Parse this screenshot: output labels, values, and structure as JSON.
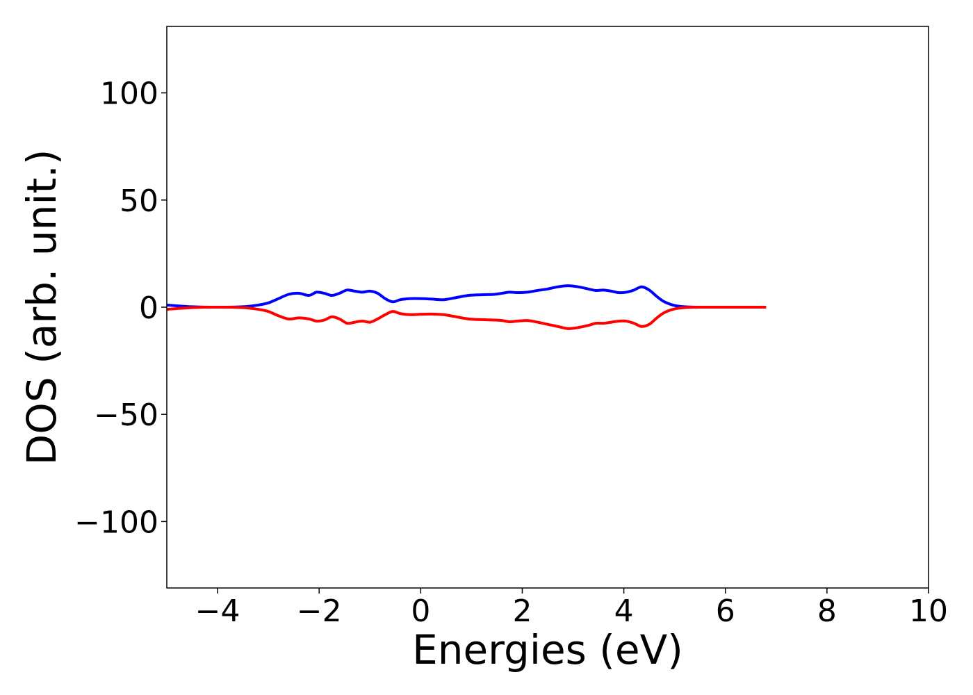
{
  "chart_data": {
    "type": "line",
    "title": "",
    "xlabel": "Energies (eV)",
    "ylabel": "DOS (arb. unit.)",
    "xlim": [
      -5,
      10
    ],
    "ylim": [
      -131,
      131
    ],
    "xticks": [
      -4,
      -2,
      0,
      2,
      4,
      6,
      8,
      10
    ],
    "xtick_labels": [
      "−4",
      "−2",
      "0",
      "2",
      "4",
      "6",
      "8",
      "10"
    ],
    "yticks": [
      100,
      50,
      0,
      -50,
      -100
    ],
    "ytick_labels": [
      "100",
      "50",
      "0",
      "−50",
      "−100"
    ],
    "grid": false,
    "legend": "none",
    "series": [
      {
        "color": "#0000ff",
        "x": [
          -5.0,
          -4.5,
          -4.0,
          -3.5,
          -3.2,
          -3.0,
          -2.8,
          -2.6,
          -2.4,
          -2.2,
          -2.05,
          -1.9,
          -1.75,
          -1.6,
          -1.45,
          -1.3,
          -1.15,
          -1.0,
          -0.85,
          -0.7,
          -0.55,
          -0.4,
          -0.2,
          0.0,
          0.2,
          0.45,
          0.7,
          0.95,
          1.2,
          1.45,
          1.6,
          1.75,
          1.9,
          2.1,
          2.3,
          2.5,
          2.7,
          2.9,
          3.1,
          3.3,
          3.45,
          3.6,
          3.75,
          3.9,
          4.05,
          4.2,
          4.35,
          4.5,
          4.65,
          4.8,
          5.0,
          5.2,
          5.5,
          6.0,
          6.5,
          6.8
        ],
        "y": [
          1.0,
          0.2,
          0.0,
          0.2,
          1.0,
          2.0,
          4.0,
          6.0,
          6.5,
          5.5,
          7.0,
          6.5,
          5.5,
          6.5,
          8.0,
          7.5,
          7.0,
          7.5,
          6.5,
          4.0,
          2.5,
          3.5,
          4.0,
          4.0,
          3.8,
          3.5,
          4.5,
          5.5,
          5.8,
          6.0,
          6.5,
          7.0,
          6.8,
          7.0,
          7.8,
          8.5,
          9.5,
          10.0,
          9.5,
          8.5,
          7.8,
          8.0,
          7.5,
          6.8,
          7.0,
          8.0,
          9.5,
          8.0,
          5.0,
          2.5,
          0.8,
          0.2,
          0.0,
          0.0,
          0.0,
          0.0
        ]
      },
      {
        "color": "#ff0000",
        "x": [
          -5.0,
          -4.5,
          -4.0,
          -3.5,
          -3.2,
          -3.0,
          -2.8,
          -2.6,
          -2.4,
          -2.2,
          -2.05,
          -1.9,
          -1.75,
          -1.6,
          -1.45,
          -1.3,
          -1.15,
          -1.0,
          -0.85,
          -0.7,
          -0.55,
          -0.4,
          -0.2,
          0.0,
          0.2,
          0.45,
          0.7,
          0.95,
          1.2,
          1.45,
          1.6,
          1.75,
          1.9,
          2.1,
          2.3,
          2.5,
          2.7,
          2.9,
          3.1,
          3.3,
          3.45,
          3.6,
          3.75,
          3.9,
          4.05,
          4.2,
          4.35,
          4.5,
          4.65,
          4.8,
          5.0,
          5.2,
          5.5,
          6.0,
          6.5,
          6.8
        ],
        "y": [
          -1.0,
          -0.2,
          0.0,
          -0.2,
          -1.0,
          -2.0,
          -4.0,
          -5.5,
          -5.0,
          -5.5,
          -6.5,
          -6.0,
          -4.5,
          -5.5,
          -7.5,
          -7.0,
          -6.5,
          -7.0,
          -5.5,
          -3.5,
          -2.0,
          -3.0,
          -3.5,
          -3.3,
          -3.2,
          -3.5,
          -4.5,
          -5.5,
          -5.8,
          -6.0,
          -6.2,
          -6.8,
          -6.5,
          -6.2,
          -7.0,
          -8.0,
          -9.0,
          -10.0,
          -9.5,
          -8.5,
          -7.5,
          -7.5,
          -7.0,
          -6.5,
          -6.5,
          -7.5,
          -9.0,
          -8.0,
          -5.0,
          -2.5,
          -0.8,
          -0.2,
          0.0,
          0.0,
          0.0,
          0.0
        ]
      }
    ]
  }
}
